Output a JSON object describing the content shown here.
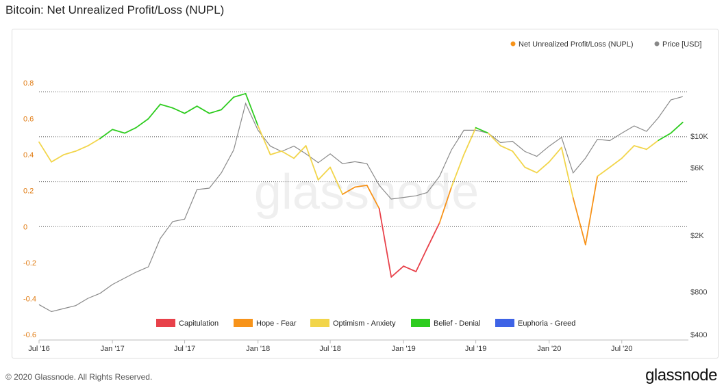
{
  "page": {
    "title": "Bitcoin: Net Unrealized Profit/Loss (NUPL)",
    "copyright": "© 2020 Glassnode. All Rights Reserved.",
    "brand": "glassnode",
    "watermark": "glassnode"
  },
  "chart_data": {
    "type": "line",
    "title": "Bitcoin: Net Unrealized Profit/Loss (NUPL)",
    "x_ticks": [
      "Jul '16",
      "Jan '17",
      "Jul '17",
      "Jan '18",
      "Jul '18",
      "Jan '19",
      "Jul '19",
      "Jan '20",
      "Jul '20"
    ],
    "y_left": {
      "ticks": [
        "0.8",
        "0.6",
        "0.4",
        "0.2",
        "0",
        "-0.2",
        "-0.4",
        "-0.6"
      ],
      "range": [
        -0.6,
        0.8
      ],
      "color": "#e07a10"
    },
    "y_right": {
      "ticks": [
        "$10K",
        "$6K",
        "$2K",
        "$800",
        "$400"
      ],
      "scale": "log",
      "color": "#444"
    },
    "legend_top": [
      {
        "label": "Net Unrealized Profit/Loss (NUPL)",
        "color": "#f7931a"
      },
      {
        "label": "Price [USD]",
        "color": "#888888"
      }
    ],
    "zones": [
      {
        "label": "Capitulation",
        "color": "#e8414a",
        "range": [
          -1,
          0
        ]
      },
      {
        "label": "Hope - Fear",
        "color": "#f7931a",
        "range": [
          0,
          0.25
        ]
      },
      {
        "label": "Optimism - Anxiety",
        "color": "#f2d54a",
        "range": [
          0.25,
          0.5
        ]
      },
      {
        "label": "Belief - Denial",
        "color": "#2ecc1f",
        "range": [
          0.5,
          0.75
        ]
      },
      {
        "label": "Euphoria - Greed",
        "color": "#3e63e6",
        "range": [
          0.75,
          1
        ]
      }
    ],
    "grid": "dotted reference lines at 0, 0.25, 0.5, 0.75",
    "legend_bottom_placement": "bottom-center",
    "legend_top_placement": "top-right",
    "series": [
      {
        "name": "Net Unrealized Profit/Loss (NUPL)",
        "x": [
          "2016-07-01",
          "2016-08-01",
          "2016-09-01",
          "2016-10-01",
          "2016-11-01",
          "2016-12-01",
          "2017-01-01",
          "2017-02-01",
          "2017-03-01",
          "2017-04-01",
          "2017-05-01",
          "2017-06-01",
          "2017-07-01",
          "2017-08-01",
          "2017-09-01",
          "2017-10-01",
          "2017-11-01",
          "2017-12-01",
          "2018-01-01",
          "2018-02-01",
          "2018-03-01",
          "2018-04-01",
          "2018-05-01",
          "2018-06-01",
          "2018-07-01",
          "2018-08-01",
          "2018-09-01",
          "2018-10-01",
          "2018-11-01",
          "2018-12-01",
          "2019-01-01",
          "2019-02-01",
          "2019-03-01",
          "2019-04-01",
          "2019-05-01",
          "2019-06-01",
          "2019-07-01",
          "2019-08-01",
          "2019-09-01",
          "2019-10-01",
          "2019-11-01",
          "2019-12-01",
          "2020-01-01",
          "2020-02-01",
          "2020-03-01",
          "2020-04-01",
          "2020-05-01",
          "2020-06-01",
          "2020-07-01",
          "2020-08-01",
          "2020-09-01",
          "2020-10-01",
          "2020-11-01",
          "2020-12-01"
        ],
        "values": [
          0.47,
          0.36,
          0.4,
          0.42,
          0.45,
          0.49,
          0.54,
          0.52,
          0.55,
          0.6,
          0.68,
          0.66,
          0.63,
          0.67,
          0.63,
          0.65,
          0.72,
          0.74,
          0.56,
          0.4,
          0.42,
          0.38,
          0.45,
          0.26,
          0.33,
          0.18,
          0.22,
          0.23,
          0.1,
          -0.28,
          -0.22,
          -0.25,
          -0.12,
          0.02,
          0.22,
          0.4,
          0.55,
          0.52,
          0.45,
          0.42,
          0.33,
          0.3,
          0.36,
          0.44,
          0.16,
          -0.1,
          0.28,
          0.33,
          0.38,
          0.45,
          0.43,
          0.48,
          0.52,
          0.58
        ]
      },
      {
        "name": "Price [USD]",
        "x": [
          "2016-07-01",
          "2016-08-01",
          "2016-09-01",
          "2016-10-01",
          "2016-11-01",
          "2016-12-01",
          "2017-01-01",
          "2017-02-01",
          "2017-03-01",
          "2017-04-01",
          "2017-05-01",
          "2017-06-01",
          "2017-07-01",
          "2017-08-01",
          "2017-09-01",
          "2017-10-01",
          "2017-11-01",
          "2017-12-01",
          "2018-01-01",
          "2018-02-01",
          "2018-03-01",
          "2018-04-01",
          "2018-05-01",
          "2018-06-01",
          "2018-07-01",
          "2018-08-01",
          "2018-09-01",
          "2018-10-01",
          "2018-11-01",
          "2018-12-01",
          "2019-01-01",
          "2019-02-01",
          "2019-03-01",
          "2019-04-01",
          "2019-05-01",
          "2019-06-01",
          "2019-07-01",
          "2019-08-01",
          "2019-09-01",
          "2019-10-01",
          "2019-11-01",
          "2019-12-01",
          "2020-01-01",
          "2020-02-01",
          "2020-03-01",
          "2020-04-01",
          "2020-05-01",
          "2020-06-01",
          "2020-07-01",
          "2020-08-01",
          "2020-09-01",
          "2020-10-01",
          "2020-11-01",
          "2020-12-01"
        ],
        "values": [
          650,
          580,
          610,
          640,
          720,
          780,
          900,
          1000,
          1100,
          1200,
          1900,
          2500,
          2600,
          4200,
          4300,
          5500,
          8000,
          17000,
          11000,
          8500,
          7800,
          8500,
          7500,
          6500,
          7500,
          6400,
          6600,
          6400,
          4500,
          3600,
          3700,
          3800,
          4000,
          5200,
          8000,
          11000,
          11000,
          10500,
          9000,
          9200,
          7800,
          7200,
          8500,
          9800,
          5500,
          7000,
          9500,
          9300,
          10500,
          11800,
          10800,
          13500,
          18000,
          19000
        ]
      }
    ]
  }
}
